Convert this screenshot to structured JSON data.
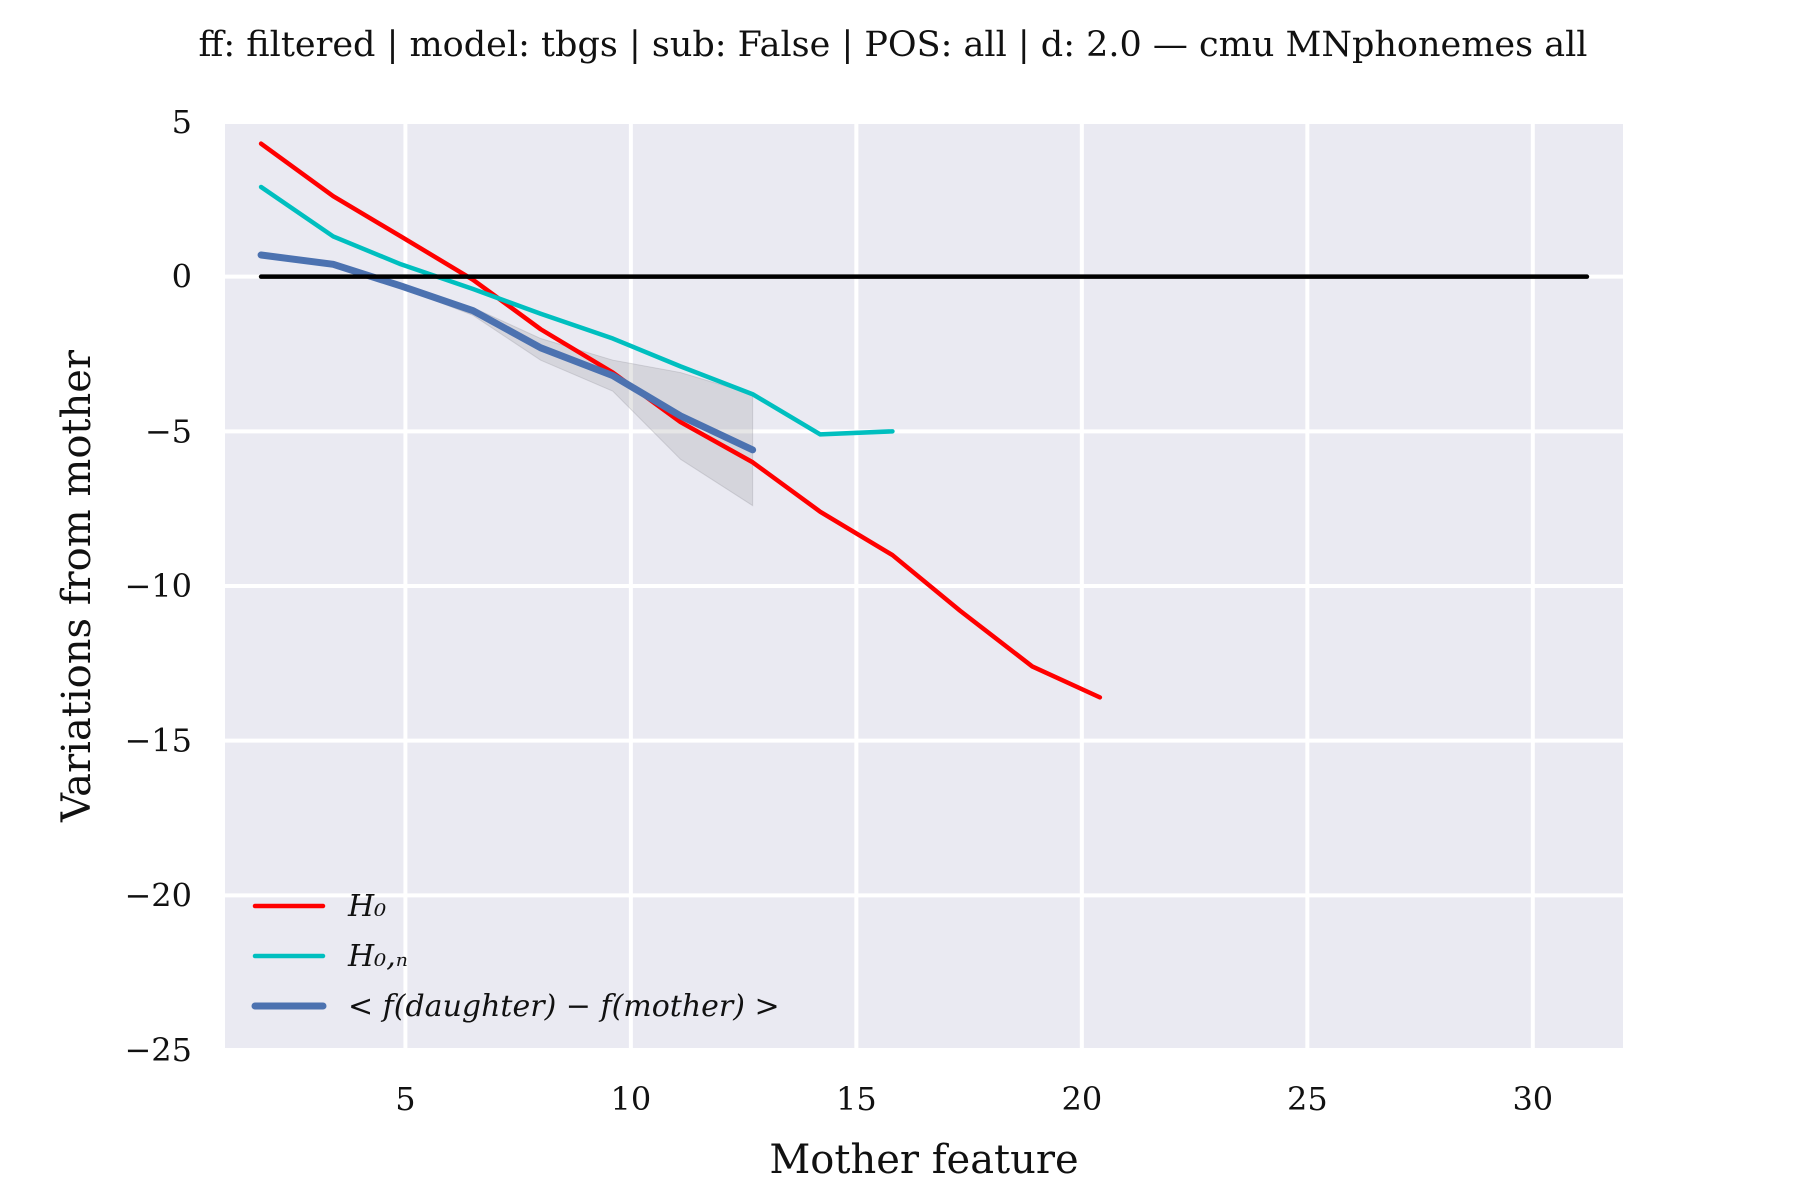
{
  "chart_data": {
    "type": "line",
    "title": "ff: filtered | model: tbgs | sub: False | POS: all | d: 2.0 — cmu MNphonemes all",
    "xlabel": "Mother feature",
    "ylabel": "Variations from mother",
    "xlim": [
      1,
      32
    ],
    "ylim": [
      -25,
      5
    ],
    "xticks": [
      5,
      10,
      15,
      20,
      25,
      30
    ],
    "yticks": [
      5,
      0,
      -5,
      -10,
      -15,
      -20,
      -25
    ],
    "xtick_labels": [
      "5",
      "10",
      "15",
      "20",
      "25",
      "30"
    ],
    "ytick_labels": [
      "5",
      "0",
      "−5",
      "−10",
      "−15",
      "−20",
      "−25"
    ],
    "grid": true,
    "legend_position": "lower-left",
    "background": "#eaeaf2",
    "series": [
      {
        "name": "H₀",
        "color": "#ff0000",
        "x": [
          1.8,
          3.4,
          4.9,
          6.5,
          8.0,
          9.6,
          11.1,
          12.7,
          14.2,
          15.8,
          17.3,
          18.9,
          20.4
        ],
        "y": [
          4.3,
          2.6,
          1.3,
          -0.1,
          -1.7,
          -3.1,
          -4.7,
          -6.0,
          -7.6,
          -9.0,
          -10.8,
          -12.6,
          -13.6
        ]
      },
      {
        "name": "H₀,ₙ",
        "color": "#00bfbf",
        "x": [
          1.8,
          3.4,
          4.9,
          6.5,
          8.0,
          9.6,
          11.1,
          12.7,
          14.2,
          15.8
        ],
        "y": [
          2.9,
          1.3,
          0.4,
          -0.4,
          -1.2,
          -2.0,
          -2.9,
          -3.8,
          -5.1,
          -5.0
        ]
      },
      {
        "name": "< f(daughter) − f(mother) >",
        "color": "#4c72b0",
        "x": [
          1.8,
          3.4,
          4.9,
          6.5,
          8.0,
          9.6,
          11.1,
          12.7
        ],
        "y": [
          0.7,
          0.4,
          -0.3,
          -1.1,
          -2.3,
          -3.2,
          -4.5,
          -5.6
        ],
        "band_lower": [
          0.7,
          0.4,
          -0.35,
          -1.25,
          -2.7,
          -3.7,
          -5.9,
          -7.4
        ],
        "band_upper": [
          0.7,
          0.4,
          -0.25,
          -1.0,
          -2.0,
          -2.7,
          -3.1,
          -3.8
        ]
      },
      {
        "name": "",
        "color": "#000000",
        "x": [
          1.8,
          31.2
        ],
        "y": [
          0,
          0
        ]
      }
    ],
    "legend": [
      {
        "label": "H₀",
        "color": "#ff0000"
      },
      {
        "label": "H₀,ₙ",
        "color": "#00bfbf"
      },
      {
        "label": "< f(daughter) − f(mother) >",
        "color": "#4c72b0"
      }
    ]
  }
}
